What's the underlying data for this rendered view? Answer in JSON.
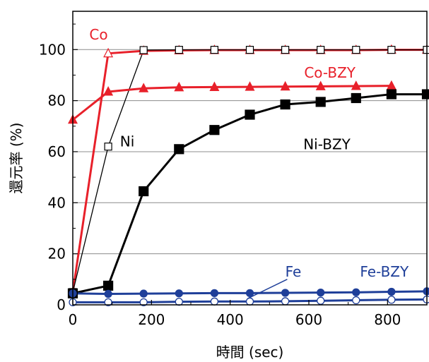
{
  "chart_data": {
    "type": "line",
    "xlabel": "時間 (sec)",
    "ylabel": "還元率 (%)",
    "xlim": [
      0,
      900
    ],
    "ylim": [
      0,
      115
    ],
    "xticks": [
      0,
      200,
      400,
      600,
      800
    ],
    "yticks": [
      0,
      20,
      40,
      60,
      80,
      100
    ],
    "grid": "horizontal",
    "legend": "none",
    "series": [
      {
        "name": "Co",
        "color": "#e8202a",
        "marker": "triangle-open",
        "line": "thick",
        "x": [
          0,
          90,
          180,
          270,
          360,
          450,
          540,
          630,
          720,
          810,
          900
        ],
        "y": [
          5,
          98.5,
          99.5,
          99.7,
          99.8,
          99.8,
          99.8,
          99.8,
          99.8,
          99.9,
          99.9
        ]
      },
      {
        "name": "Ni",
        "color": "#000000",
        "marker": "square-open",
        "line": "thin",
        "x": [
          0,
          90,
          180,
          270,
          360,
          450,
          540,
          630,
          720,
          810,
          900
        ],
        "y": [
          5,
          62,
          99.8,
          99.9,
          99.9,
          99.9,
          99.9,
          99.9,
          99.9,
          99.9,
          99.9
        ]
      },
      {
        "name": "Co-BZY",
        "color": "#e8202a",
        "marker": "triangle-filled",
        "line": "thick",
        "x": [
          0,
          90,
          180,
          270,
          360,
          450,
          540,
          630,
          720,
          810
        ],
        "y": [
          72.5,
          83.5,
          84.8,
          85.2,
          85.3,
          85.4,
          85.5,
          85.6,
          85.7,
          85.8
        ]
      },
      {
        "name": "Ni-BZY",
        "color": "#000000",
        "marker": "square-filled",
        "line": "thick",
        "x": [
          0,
          90,
          180,
          270,
          360,
          450,
          540,
          630,
          720,
          810,
          900
        ],
        "y": [
          4.5,
          7.5,
          44.5,
          61,
          68.5,
          74.5,
          78.5,
          79.5,
          81,
          82.5,
          82.5
        ]
      },
      {
        "name": "Fe",
        "color": "#1f3f99",
        "marker": "circle-open",
        "line": "thick",
        "x": [
          0,
          90,
          180,
          270,
          360,
          450,
          540,
          630,
          720,
          810,
          900
        ],
        "y": [
          1,
          1,
          1,
          1.2,
          1.3,
          1.3,
          1.4,
          1.6,
          1.8,
          2,
          2.1
        ]
      },
      {
        "name": "Fe-BZY",
        "color": "#1f3f99",
        "marker": "circle-filled",
        "line": "thick",
        "x": [
          0,
          90,
          180,
          270,
          360,
          450,
          540,
          630,
          720,
          810,
          900
        ],
        "y": [
          4.5,
          4.3,
          4.4,
          4.5,
          4.6,
          4.6,
          4.7,
          4.8,
          4.9,
          5.1,
          5.3
        ]
      }
    ],
    "annotations": [
      "Co",
      "Ni",
      "Co-BZY",
      "Ni-BZY",
      "Fe",
      "Fe-BZY"
    ]
  }
}
